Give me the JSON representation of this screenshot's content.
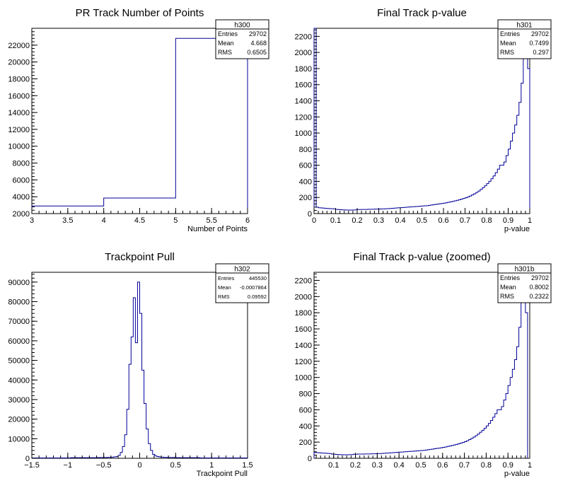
{
  "chart_data": [
    {
      "type": "bar",
      "title": "PR Track Number of Points",
      "xlabel": "Number of Points",
      "ylabel": "",
      "xlim": [
        3,
        6
      ],
      "ylim": [
        2000,
        24000
      ],
      "x_ticks": [
        3,
        3.5,
        4,
        4.5,
        5,
        5.5,
        6
      ],
      "x_tick_labels": [
        "3",
        "3.5",
        "4",
        "4.5",
        "5",
        "5.5",
        "6"
      ],
      "y_ticks": [
        2000,
        4000,
        6000,
        8000,
        10000,
        12000,
        14000,
        16000,
        18000,
        20000,
        22000
      ],
      "y_tick_labels": [
        "2000",
        "4000",
        "6000",
        "8000",
        "10000",
        "12000",
        "14000",
        "16000",
        "18000",
        "20000",
        "22000"
      ],
      "bins": [
        [
          3,
          4,
          2900
        ],
        [
          4,
          5,
          3850
        ],
        [
          5,
          6,
          22800
        ]
      ],
      "stats": {
        "name": "h300",
        "rows": [
          [
            "Entries",
            "29702"
          ],
          [
            "Mean",
            "4.668"
          ],
          [
            "RMS",
            "0.6505"
          ]
        ]
      },
      "color": "#000099"
    },
    {
      "type": "bar",
      "title": "Final Track p-value",
      "xlabel": "p-value",
      "ylabel": "",
      "xlim": [
        0,
        1
      ],
      "ylim": [
        0,
        2300
      ],
      "x_ticks": [
        0,
        0.1,
        0.2,
        0.3,
        0.4,
        0.5,
        0.6,
        0.7,
        0.8,
        0.9,
        1
      ],
      "x_tick_labels": [
        "0",
        "0.1",
        "0.2",
        "0.3",
        "0.4",
        "0.5",
        "0.6",
        "0.7",
        "0.8",
        "0.9",
        "1"
      ],
      "y_ticks": [
        0,
        200,
        400,
        600,
        800,
        1000,
        1200,
        1400,
        1600,
        1800,
        2000,
        2200
      ],
      "y_tick_labels": [
        "0",
        "200",
        "400",
        "600",
        "800",
        "1000",
        "1200",
        "1400",
        "1600",
        "1800",
        "2000",
        "2200"
      ],
      "bin_start": 0,
      "bin_width": 0.01,
      "values": [
        2300,
        80,
        72,
        70,
        68,
        66,
        64,
        62,
        60,
        58,
        52,
        50,
        48,
        46,
        45,
        44,
        44,
        44,
        45,
        46,
        50,
        50,
        52,
        52,
        52,
        54,
        54,
        54,
        56,
        56,
        56,
        58,
        58,
        60,
        62,
        64,
        66,
        68,
        70,
        72,
        74,
        76,
        78,
        80,
        82,
        84,
        86,
        88,
        90,
        92,
        94,
        96,
        98,
        102,
        106,
        110,
        114,
        118,
        122,
        126,
        130,
        135,
        140,
        146,
        152,
        158,
        165,
        172,
        180,
        188,
        196,
        206,
        218,
        232,
        246,
        262,
        280,
        300,
        322,
        346,
        372,
        400,
        432,
        468,
        508,
        552,
        600,
        600,
        640,
        720,
        800,
        900,
        1000,
        1100,
        1220,
        1380,
        1620,
        1950,
        2350,
        1800
      ],
      "stats": {
        "name": "h301",
        "rows": [
          [
            "Entries",
            "29702"
          ],
          [
            "Mean",
            "0.7499"
          ],
          [
            "RMS",
            "0.297"
          ]
        ]
      },
      "color": "#000099"
    },
    {
      "type": "bar",
      "title": "Trackpoint Pull",
      "xlabel": "Trackpoint Pull",
      "ylabel": "",
      "xlim": [
        -1.5,
        1.5
      ],
      "ylim": [
        0,
        95000
      ],
      "x_ticks": [
        -1.5,
        -1,
        -0.5,
        0,
        0.5,
        1,
        1.5
      ],
      "x_tick_labels": [
        "−1.5",
        "−1",
        "−0.5",
        "0",
        "0.5",
        "1",
        "1.5"
      ],
      "y_ticks": [
        0,
        10000,
        20000,
        30000,
        40000,
        50000,
        60000,
        70000,
        80000,
        90000
      ],
      "y_tick_labels": [
        "0",
        "10000",
        "20000",
        "30000",
        "40000",
        "50000",
        "60000",
        "70000",
        "80000",
        "90000"
      ],
      "bin_start": -1.5,
      "bin_width": 0.03,
      "values": [
        200,
        200,
        200,
        200,
        200,
        200,
        200,
        200,
        200,
        200,
        200,
        200,
        200,
        200,
        200,
        200,
        200,
        200,
        300,
        300,
        300,
        300,
        300,
        300,
        300,
        300,
        300,
        300,
        300,
        300,
        400,
        400,
        400,
        400,
        400,
        500,
        500,
        600,
        700,
        900,
        1500,
        3000,
        6000,
        12000,
        25000,
        48000,
        62000,
        82000,
        59000,
        90000,
        74000,
        45000,
        28000,
        15000,
        7500,
        4000,
        2000,
        1200,
        900,
        700,
        600,
        500,
        500,
        400,
        400,
        400,
        400,
        300,
        300,
        300,
        300,
        300,
        300,
        300,
        300,
        300,
        300,
        300,
        200,
        200,
        200,
        200,
        200,
        200,
        200,
        200,
        200,
        200,
        200,
        200,
        200,
        200,
        200,
        200,
        200,
        200,
        200,
        200,
        200,
        200
      ],
      "stats": {
        "name": "h302",
        "rows": [
          [
            "Entries",
            "445530"
          ],
          [
            "Mean",
            "-0.0007864"
          ],
          [
            "RMS",
            "0.09592"
          ]
        ]
      },
      "color": "#000099"
    },
    {
      "type": "bar",
      "title": "Final Track p-value (zoomed)",
      "xlabel": "p-value",
      "ylabel": "",
      "xlim": [
        0.01,
        1
      ],
      "ylim": [
        0,
        2300
      ],
      "x_ticks": [
        0.1,
        0.2,
        0.3,
        0.4,
        0.5,
        0.6,
        0.7,
        0.8,
        0.9,
        1
      ],
      "x_tick_labels": [
        "0.1",
        "0.2",
        "0.3",
        "0.4",
        "0.5",
        "0.6",
        "0.7",
        "0.8",
        "0.9",
        "1"
      ],
      "y_ticks": [
        0,
        200,
        400,
        600,
        800,
        1000,
        1200,
        1400,
        1600,
        1800,
        2000,
        2200
      ],
      "y_tick_labels": [
        "0",
        "200",
        "400",
        "600",
        "800",
        "1000",
        "1200",
        "1400",
        "1600",
        "1800",
        "2000",
        "2200"
      ],
      "bin_start": 0.01,
      "bin_width": 0.01,
      "values": [
        72,
        70,
        68,
        66,
        64,
        62,
        60,
        58,
        52,
        50,
        48,
        46,
        45,
        44,
        44,
        44,
        45,
        46,
        50,
        50,
        52,
        52,
        52,
        54,
        54,
        54,
        56,
        56,
        56,
        58,
        58,
        60,
        62,
        64,
        66,
        68,
        70,
        72,
        74,
        76,
        78,
        80,
        82,
        84,
        86,
        88,
        90,
        92,
        94,
        96,
        98,
        102,
        106,
        110,
        114,
        118,
        122,
        126,
        130,
        135,
        140,
        146,
        152,
        158,
        165,
        172,
        180,
        188,
        196,
        206,
        218,
        232,
        246,
        262,
        280,
        300,
        322,
        346,
        372,
        400,
        432,
        468,
        508,
        552,
        600,
        600,
        640,
        720,
        800,
        900,
        1000,
        1100,
        1220,
        1380,
        1620,
        1950,
        2350,
        1800
      ],
      "stats": {
        "name": "h301b",
        "rows": [
          [
            "Entries",
            "29702"
          ],
          [
            "Mean",
            "0.8002"
          ],
          [
            "RMS",
            "0.2322"
          ]
        ]
      },
      "color": "#000099"
    }
  ]
}
